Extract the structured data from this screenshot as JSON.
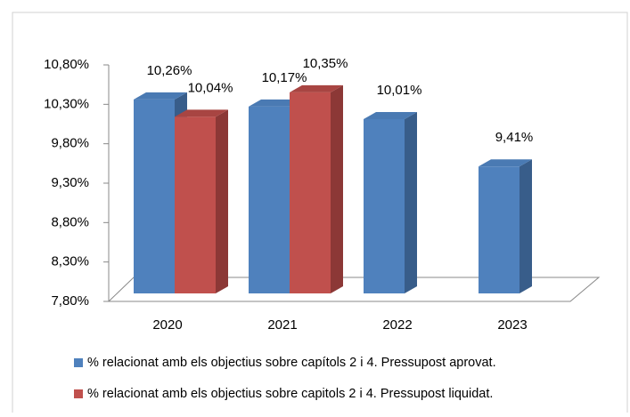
{
  "chart_data": {
    "type": "bar3d",
    "categories": [
      "2020",
      "2021",
      "2022",
      "2023"
    ],
    "series": [
      {
        "name": "% relacionat amb els objectius sobre capítols 2 i 4. Pressupost aprovat.",
        "color": "#4f81bd",
        "side": "#385d8a",
        "top": "#4a7ab3",
        "values": [
          10.26,
          10.17,
          10.01,
          9.41
        ],
        "value_labels": [
          "10,26%",
          "10,17%",
          "10,01%",
          "9,41%"
        ]
      },
      {
        "name": "% relacionat amb els objectius sobre capitols 2 i 4. Pressupost liquidat.",
        "color": "#c0504d",
        "side": "#8c3836",
        "top": "#a84542",
        "values": [
          10.04,
          10.35,
          null,
          null
        ],
        "value_labels": [
          "10,04%",
          "10,35%",
          null,
          null
        ]
      }
    ],
    "ylim": [
      7.8,
      10.8
    ],
    "yticks": [
      {
        "value": 7.8,
        "label": "7,80%"
      },
      {
        "value": 8.3,
        "label": "8,30%"
      },
      {
        "value": 8.8,
        "label": "8,80%"
      },
      {
        "value": 9.3,
        "label": "9,30%"
      },
      {
        "value": 9.8,
        "label": "9,80%"
      },
      {
        "value": 10.3,
        "label": "10,30%"
      },
      {
        "value": 10.8,
        "label": "10,80%"
      }
    ],
    "legend": "bottom"
  }
}
